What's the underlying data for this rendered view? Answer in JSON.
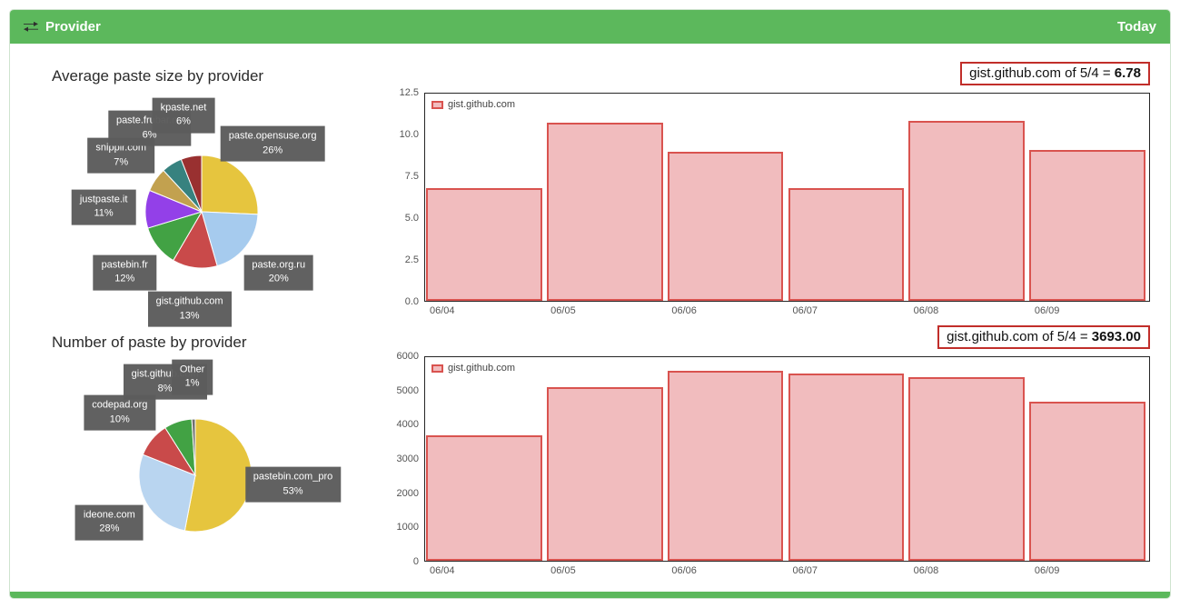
{
  "header": {
    "title": "Provider",
    "period": "Today"
  },
  "colors": {
    "panel_green": "#5cb85c",
    "bar_fill": "#f1bcbe",
    "bar_border": "#d9534f",
    "badge_border": "#c12e2a"
  },
  "chart_data": [
    {
      "type": "pie",
      "title": "Average paste size by provider",
      "slices": [
        {
          "label": "paste.opensuse.org",
          "value": 26,
          "color": "#e6c53e"
        },
        {
          "label": "paste.org.ru",
          "value": 20,
          "color": "#a6cbee"
        },
        {
          "label": "gist.github.com",
          "value": 13,
          "color": "#c94a4a"
        },
        {
          "label": "pastebin.fr",
          "value": 12,
          "color": "#42a244"
        },
        {
          "label": "justpaste.it",
          "value": 11,
          "color": "#9340e8"
        },
        {
          "label": "snipplr.com",
          "value": 7,
          "color": "#c2a14f"
        },
        {
          "label": "paste.frubar.ne",
          "value": 6,
          "color": "#37827f"
        },
        {
          "label": "kpaste.net",
          "value": 6,
          "color": "#993030"
        }
      ]
    },
    {
      "type": "pie",
      "title": "Number of paste by provider",
      "slices": [
        {
          "label": "pastebin.com_pro",
          "value": 53,
          "color": "#e6c53e"
        },
        {
          "label": "ideone.com",
          "value": 28,
          "color": "#b9d5f0"
        },
        {
          "label": "codepad.org",
          "value": 10,
          "color": "#c94a4a"
        },
        {
          "label": "gist.github.com",
          "value": 8,
          "color": "#42a244"
        },
        {
          "label": "Other",
          "value": 1,
          "color": "#6f6f6f"
        }
      ]
    },
    {
      "type": "bar",
      "series": "gist.github.com",
      "badge_prefix": "gist.github.com of 5/4 = ",
      "badge_value": "6.78",
      "categories": [
        "06/04",
        "06/05",
        "06/06",
        "06/07",
        "06/08",
        "06/09"
      ],
      "values": [
        6.78,
        10.72,
        9.0,
        6.8,
        10.85,
        9.12
      ],
      "ymax": 12.5,
      "yticks": [
        "0.0",
        "2.5",
        "5.0",
        "7.5",
        "10.0",
        "12.5"
      ]
    },
    {
      "type": "bar",
      "series": "gist.github.com",
      "badge_prefix": "gist.github.com of 5/4 = ",
      "badge_value": "3693.00",
      "categories": [
        "06/04",
        "06/05",
        "06/06",
        "06/07",
        "06/08",
        "06/09"
      ],
      "values": [
        3693,
        5120,
        5600,
        5520,
        5400,
        4700
      ],
      "ymax": 6000,
      "yticks": [
        "0",
        "1000",
        "2000",
        "3000",
        "4000",
        "5000",
        "6000"
      ]
    }
  ]
}
